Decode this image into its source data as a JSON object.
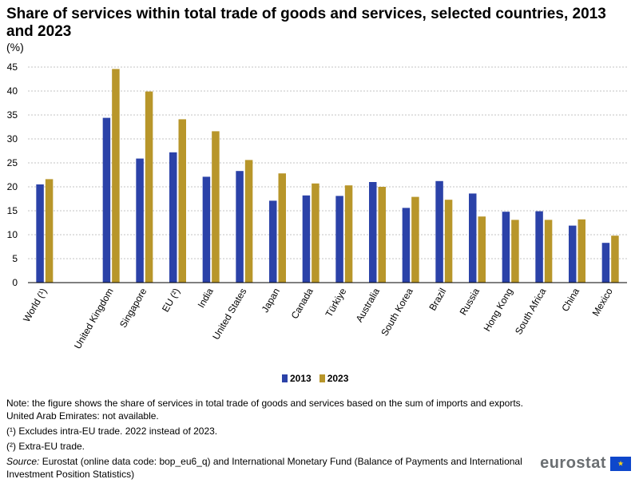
{
  "title": "Share of services within total trade of goods and services, selected countries, 2013 and 2023",
  "unit": "(%)",
  "legend": {
    "s1": "2013",
    "s2": "2023"
  },
  "colors": {
    "s2013": "#2b42a8",
    "s2023": "#b8962a"
  },
  "notes": {
    "note": "Note: the figure shows the share of services in total trade of goods and services based on the sum of imports and exports. United Arab Emirates: not available.",
    "fn1": "(¹) Excludes intra-EU trade. 2022 instead of 2023.",
    "fn2": "(²) Extra-EU trade.",
    "source_label": "Source:",
    "source_text": " Eurostat (online data code: bop_eu6_q) and International Monetary Fund (Balance of Payments and International Investment Position Statistics)"
  },
  "logo": {
    "text": "eurostat",
    "flag_icon": "eu-flag-icon"
  },
  "chart_data": {
    "type": "bar",
    "title": "Share of services within total trade of goods and services, selected countries, 2013 and 2023",
    "ylabel": "(%)",
    "ylim": [
      0,
      45
    ],
    "yticks": [
      0,
      5,
      10,
      15,
      20,
      25,
      30,
      35,
      40,
      45
    ],
    "grid": true,
    "legend_position": "bottom",
    "categories": [
      "World (¹)",
      "",
      "United Kingdom",
      "Singapore",
      "EU (²)",
      "India",
      "United States",
      "Japan",
      "Canada",
      "Türkiye",
      "Australia",
      "South Korea",
      "Brazil",
      "Russia",
      "Hong Kong",
      "South Africa",
      "China",
      "Mexico"
    ],
    "series": [
      {
        "name": "2013",
        "values": [
          20.5,
          null,
          34.4,
          25.9,
          27.2,
          22.1,
          23.3,
          17.1,
          18.2,
          18.1,
          21.0,
          15.6,
          21.2,
          18.6,
          14.8,
          14.9,
          11.9,
          8.3
        ]
      },
      {
        "name": "2023",
        "values": [
          21.6,
          null,
          44.6,
          39.9,
          34.1,
          31.6,
          25.6,
          22.8,
          20.7,
          20.3,
          20.0,
          17.9,
          17.3,
          13.8,
          13.1,
          13.1,
          13.2,
          9.8
        ]
      }
    ]
  }
}
